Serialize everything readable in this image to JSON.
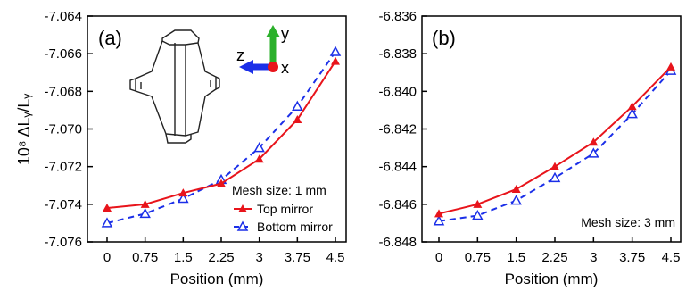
{
  "ylabel": "10⁸ ΔLᵧ/Lᵧ",
  "colors": {
    "top": "#e8141b",
    "bottom": "#1b2fe8",
    "axis": "#000000",
    "inset_y": "#2bb02b",
    "inset_z": "#1b2fe8",
    "inset_x": "#e8141b"
  },
  "chart_data": [
    {
      "type": "line",
      "panel_label": "(a)",
      "xlabel": "Position (mm)",
      "ylabel": "10⁸ ΔLᵧ/Lᵧ",
      "categories": [
        "0",
        "0.75",
        "1.5",
        "2.25",
        "3",
        "3.75",
        "4.5"
      ],
      "ylim": [
        -7.076,
        -7.064
      ],
      "yticks": [
        "-7.064",
        "-7.066",
        "-7.068",
        "-7.070",
        "-7.072",
        "-7.074",
        "-7.076"
      ],
      "yticks_values": [
        -7.064,
        -7.066,
        -7.068,
        -7.07,
        -7.072,
        -7.074,
        -7.076
      ],
      "annotation": "Mesh size: 1 mm",
      "legend_position": "bottom-right",
      "series": [
        {
          "name": "Top mirror",
          "color": "#e8141b",
          "line": "solid",
          "marker": "filled-triangle",
          "values": [
            -7.0742,
            -7.074,
            -7.0734,
            -7.0729,
            -7.0716,
            -7.0695,
            -7.0664
          ]
        },
        {
          "name": "Bottom mirror",
          "color": "#1b2fe8",
          "line": "dashed",
          "marker": "open-triangle",
          "values": [
            -7.075,
            -7.0745,
            -7.0737,
            -7.0727,
            -7.071,
            -7.0688,
            -7.0659
          ]
        }
      ],
      "inset_axes": {
        "y": "y",
        "z": "z",
        "x": "x"
      }
    },
    {
      "type": "line",
      "panel_label": "(b)",
      "xlabel": "Position (mm)",
      "categories": [
        "0",
        "0.75",
        "1.5",
        "2.25",
        "3",
        "3.75",
        "4.5"
      ],
      "ylim": [
        -6.848,
        -6.836
      ],
      "yticks": [
        "-6.836",
        "-6.838",
        "-6.840",
        "-6.842",
        "-6.844",
        "-6.846",
        "-6.848"
      ],
      "yticks_values": [
        -6.836,
        -6.838,
        -6.84,
        -6.842,
        -6.844,
        -6.846,
        -6.848
      ],
      "annotation": "Mesh size: 3 mm",
      "series": [
        {
          "name": "Top mirror",
          "color": "#e8141b",
          "line": "solid",
          "marker": "filled-triangle",
          "values": [
            -6.8465,
            -6.846,
            -6.8452,
            -6.844,
            -6.8427,
            -6.8408,
            -6.8387
          ]
        },
        {
          "name": "Bottom mirror",
          "color": "#1b2fe8",
          "line": "dashed",
          "marker": "open-triangle",
          "values": [
            -6.8469,
            -6.8466,
            -6.8458,
            -6.8446,
            -6.8433,
            -6.8412,
            -6.8389
          ]
        }
      ]
    }
  ]
}
